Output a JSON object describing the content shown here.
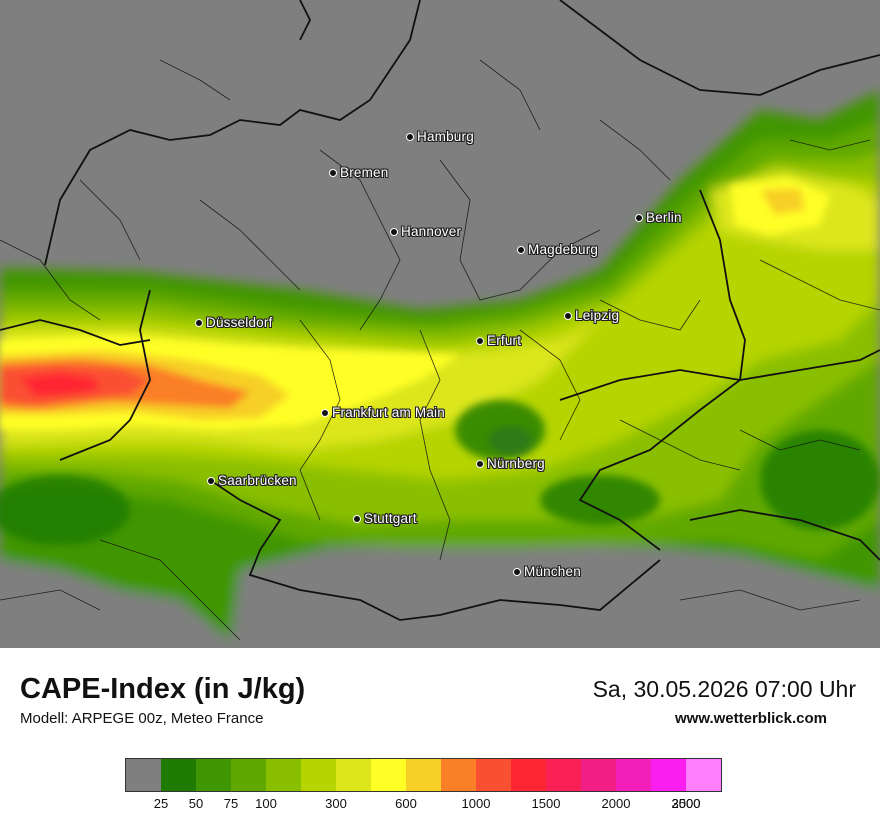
{
  "map": {
    "cities": [
      {
        "name": "Hamburg",
        "id": "hamburg"
      },
      {
        "name": "Bremen",
        "id": "bremen"
      },
      {
        "name": "Hannover",
        "id": "hannover"
      },
      {
        "name": "Berlin",
        "id": "berlin"
      },
      {
        "name": "Magdeburg",
        "id": "magdeburg"
      },
      {
        "name": "Düsseldorf",
        "id": "duesseldorf"
      },
      {
        "name": "Leipzig",
        "id": "leipzig"
      },
      {
        "name": "Erfurt",
        "id": "erfurt"
      },
      {
        "name": "Frankfurt am Main",
        "id": "frankfurt"
      },
      {
        "name": "Nürnberg",
        "id": "nuernberg"
      },
      {
        "name": "Saarbrücken",
        "id": "saarbruecken"
      },
      {
        "name": "Stuttgart",
        "id": "stuttgart"
      },
      {
        "name": "München",
        "id": "muenchen"
      }
    ],
    "background_color": "#7f7f7f"
  },
  "header": {
    "title": "CAPE-Index (in J/kg)",
    "subtitle": "Modell: ARPEGE 00z, Meteo France",
    "datetime": "Sa, 30.05.2026 07:00 Uhr",
    "website": "www.wetterblick.com"
  },
  "legend": {
    "colors": [
      "#7f7f7f",
      "#1f7a00",
      "#3f9600",
      "#60a800",
      "#8abf00",
      "#b5d400",
      "#dde61a",
      "#ffff26",
      "#f7cf26",
      "#fa7f26",
      "#fa5032",
      "#ff2633",
      "#fa1f55",
      "#f21f84",
      "#f21fba",
      "#fa1ff0",
      "#ff7fff"
    ],
    "ticks": [
      "25",
      "50",
      "75",
      "100",
      "300",
      "600",
      "1000",
      "1500",
      "2000",
      "2500",
      "3000"
    ]
  }
}
